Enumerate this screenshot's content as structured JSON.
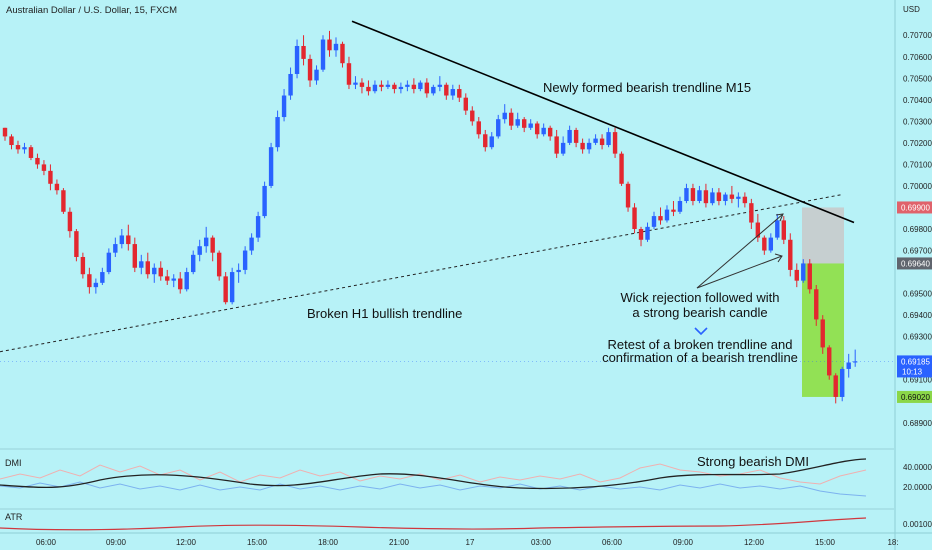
{
  "header": {
    "symbol_title": "Australian Dollar / U.S. Dollar, 15, FXCM"
  },
  "price_axis": {
    "currency_label": "USD",
    "ticks": [
      "0.70700",
      "0.70600",
      "0.70500",
      "0.70400",
      "0.70300",
      "0.70200",
      "0.70100",
      "0.70000",
      "0.69800",
      "0.69700",
      "0.69500",
      "0.69400",
      "0.69300",
      "0.69100",
      "0.68900"
    ],
    "badges": {
      "stop": {
        "value": "0.69900",
        "color": "#e0626b"
      },
      "entry": {
        "value": "0.69640",
        "color": "#60656e"
      },
      "last": {
        "value": "0.69185",
        "sub": "10:13",
        "color": "#2962ff"
      },
      "target": {
        "value": "0.69020",
        "color": "#8bd749"
      }
    }
  },
  "time_axis": {
    "labels": [
      "06:00",
      "09:00",
      "12:00",
      "15:00",
      "18:00",
      "21:00",
      "17",
      "03:00",
      "06:00",
      "09:00",
      "12:00",
      "15:00",
      "18:"
    ]
  },
  "annotations": {
    "m15_trendline": "Newly formed bearish trendline M15",
    "h1_trendline": "Broken H1 bullish trendline",
    "wick_line1": "Wick rejection followed with",
    "wick_line2": "a strong bearish candle",
    "retest_line1": "Retest of a broken trendline and",
    "retest_line2": "confirmation of a bearish trendline",
    "dmi_note": "Strong bearish DMI"
  },
  "indicators": {
    "dmi": {
      "label": "DMI",
      "ticks": [
        "40.0000",
        "20.0000"
      ]
    },
    "atr": {
      "label": "ATR",
      "ticks": [
        "0.00100"
      ]
    }
  },
  "colors": {
    "background": "#b7f2f7",
    "bull": "#2962ff",
    "bear": "#e3272f",
    "stop_zone": "#c9c9c9",
    "target_zone": "#8fdf4c",
    "trendline": "#000000"
  },
  "chart_data": {
    "type": "candlestick",
    "title": "Australian Dollar / U.S. Dollar, 15, FXCM",
    "ylabel": "USD",
    "ylim": [
      0.6882,
      0.7078
    ],
    "candles": [
      [
        0.7027,
        0.7027,
        0.7021,
        0.7023
      ],
      [
        0.7023,
        0.7024,
        0.7017,
        0.7019
      ],
      [
        0.7019,
        0.7021,
        0.7015,
        0.7017
      ],
      [
        0.7017,
        0.702,
        0.7015,
        0.7018
      ],
      [
        0.7018,
        0.7019,
        0.7012,
        0.7013
      ],
      [
        0.7013,
        0.7015,
        0.7008,
        0.701
      ],
      [
        0.701,
        0.7012,
        0.7005,
        0.7007
      ],
      [
        0.7007,
        0.701,
        0.6998,
        0.7001
      ],
      [
        0.7001,
        0.7003,
        0.6996,
        0.6998
      ],
      [
        0.6998,
        0.6999,
        0.6987,
        0.6988
      ],
      [
        0.6988,
        0.699,
        0.6976,
        0.6979
      ],
      [
        0.6979,
        0.698,
        0.6965,
        0.6967
      ],
      [
        0.6967,
        0.6969,
        0.6957,
        0.6959
      ],
      [
        0.6959,
        0.6962,
        0.695,
        0.6953
      ],
      [
        0.6953,
        0.6957,
        0.695,
        0.6955
      ],
      [
        0.6955,
        0.6962,
        0.6954,
        0.696
      ],
      [
        0.696,
        0.6971,
        0.6959,
        0.6969
      ],
      [
        0.6969,
        0.6976,
        0.6967,
        0.6973
      ],
      [
        0.6973,
        0.698,
        0.6971,
        0.6977
      ],
      [
        0.6977,
        0.6982,
        0.697,
        0.6973
      ],
      [
        0.6973,
        0.6976,
        0.696,
        0.6962
      ],
      [
        0.6962,
        0.6968,
        0.6959,
        0.6965
      ],
      [
        0.6965,
        0.6969,
        0.6957,
        0.6959
      ],
      [
        0.6959,
        0.6964,
        0.6955,
        0.6962
      ],
      [
        0.6962,
        0.6965,
        0.6956,
        0.6958
      ],
      [
        0.6958,
        0.6961,
        0.6954,
        0.6956
      ],
      [
        0.6956,
        0.6959,
        0.6953,
        0.6957
      ],
      [
        0.6957,
        0.696,
        0.695,
        0.6952
      ],
      [
        0.6952,
        0.6962,
        0.6951,
        0.696
      ],
      [
        0.696,
        0.697,
        0.6959,
        0.6968
      ],
      [
        0.6968,
        0.6975,
        0.6965,
        0.6972
      ],
      [
        0.6972,
        0.6981,
        0.6969,
        0.6976
      ],
      [
        0.6976,
        0.6977,
        0.6965,
        0.6969
      ],
      [
        0.6969,
        0.697,
        0.6956,
        0.6958
      ],
      [
        0.6958,
        0.696,
        0.6945,
        0.6946
      ],
      [
        0.6946,
        0.6962,
        0.6945,
        0.696
      ],
      [
        0.696,
        0.6964,
        0.6955,
        0.6961
      ],
      [
        0.6961,
        0.6972,
        0.6959,
        0.697
      ],
      [
        0.697,
        0.6978,
        0.6968,
        0.6976
      ],
      [
        0.6976,
        0.6988,
        0.6974,
        0.6986
      ],
      [
        0.6986,
        0.7002,
        0.6985,
        0.7
      ],
      [
        0.7,
        0.702,
        0.6999,
        0.7018
      ],
      [
        0.7018,
        0.7035,
        0.7016,
        0.7032
      ],
      [
        0.7032,
        0.7045,
        0.703,
        0.7042
      ],
      [
        0.7042,
        0.7055,
        0.704,
        0.7052
      ],
      [
        0.7052,
        0.7068,
        0.705,
        0.7065
      ],
      [
        0.7065,
        0.707,
        0.7056,
        0.7059
      ],
      [
        0.7059,
        0.7061,
        0.7046,
        0.7049
      ],
      [
        0.7049,
        0.7056,
        0.7047,
        0.7054
      ],
      [
        0.7054,
        0.707,
        0.7053,
        0.7068
      ],
      [
        0.7068,
        0.7072,
        0.706,
        0.7063
      ],
      [
        0.7063,
        0.7069,
        0.706,
        0.7066
      ],
      [
        0.7066,
        0.7067,
        0.7055,
        0.7057
      ],
      [
        0.7057,
        0.706,
        0.7045,
        0.7047
      ],
      [
        0.7047,
        0.7051,
        0.7045,
        0.7048
      ],
      [
        0.7048,
        0.705,
        0.7043,
        0.7046
      ],
      [
        0.7046,
        0.7049,
        0.7042,
        0.7044
      ],
      [
        0.7044,
        0.7049,
        0.7043,
        0.7047
      ],
      [
        0.7047,
        0.7049,
        0.7044,
        0.7046
      ],
      [
        0.7046,
        0.7049,
        0.7045,
        0.7047
      ],
      [
        0.7047,
        0.7048,
        0.7043,
        0.7045
      ],
      [
        0.7045,
        0.7048,
        0.7043,
        0.7046
      ],
      [
        0.7046,
        0.7049,
        0.7044,
        0.7047
      ],
      [
        0.7047,
        0.705,
        0.7043,
        0.7045
      ],
      [
        0.7045,
        0.7049,
        0.7044,
        0.7048
      ],
      [
        0.7048,
        0.705,
        0.7041,
        0.7043
      ],
      [
        0.7043,
        0.7047,
        0.7042,
        0.7046
      ],
      [
        0.7046,
        0.7051,
        0.7044,
        0.7047
      ],
      [
        0.7047,
        0.7048,
        0.704,
        0.7042
      ],
      [
        0.7042,
        0.7047,
        0.704,
        0.7045
      ],
      [
        0.7045,
        0.7047,
        0.7039,
        0.7041
      ],
      [
        0.7041,
        0.7043,
        0.7033,
        0.7035
      ],
      [
        0.7035,
        0.7037,
        0.7028,
        0.703
      ],
      [
        0.703,
        0.7032,
        0.7022,
        0.7024
      ],
      [
        0.7024,
        0.7026,
        0.7016,
        0.7018
      ],
      [
        0.7018,
        0.7025,
        0.7017,
        0.7023
      ],
      [
        0.7023,
        0.7033,
        0.7022,
        0.7031
      ],
      [
        0.7031,
        0.7038,
        0.7029,
        0.7034
      ],
      [
        0.7034,
        0.7036,
        0.7026,
        0.7028
      ],
      [
        0.7028,
        0.7034,
        0.7027,
        0.7031
      ],
      [
        0.7031,
        0.7032,
        0.7025,
        0.7027
      ],
      [
        0.7027,
        0.7031,
        0.7026,
        0.7029
      ],
      [
        0.7029,
        0.703,
        0.7022,
        0.7024
      ],
      [
        0.7024,
        0.7029,
        0.7023,
        0.7027
      ],
      [
        0.7027,
        0.7028,
        0.7021,
        0.7023
      ],
      [
        0.7023,
        0.7026,
        0.7013,
        0.7015
      ],
      [
        0.7015,
        0.7023,
        0.7014,
        0.702
      ],
      [
        0.702,
        0.7028,
        0.7019,
        0.7026
      ],
      [
        0.7026,
        0.7027,
        0.7018,
        0.702
      ],
      [
        0.702,
        0.7022,
        0.7015,
        0.7017
      ],
      [
        0.7017,
        0.7022,
        0.7015,
        0.702
      ],
      [
        0.702,
        0.7024,
        0.7019,
        0.7022
      ],
      [
        0.7022,
        0.7024,
        0.7017,
        0.7019
      ],
      [
        0.7019,
        0.7027,
        0.7018,
        0.7025
      ],
      [
        0.7025,
        0.7027,
        0.7013,
        0.7015
      ],
      [
        0.7015,
        0.7016,
        0.7,
        0.7001
      ],
      [
        0.7001,
        0.7002,
        0.6988,
        0.699
      ],
      [
        0.699,
        0.6992,
        0.6978,
        0.698
      ],
      [
        0.698,
        0.6981,
        0.6972,
        0.6975
      ],
      [
        0.6975,
        0.6983,
        0.6974,
        0.6981
      ],
      [
        0.6981,
        0.6988,
        0.698,
        0.6986
      ],
      [
        0.6986,
        0.699,
        0.6982,
        0.6984
      ],
      [
        0.6984,
        0.6991,
        0.6983,
        0.6989
      ],
      [
        0.6989,
        0.6993,
        0.6986,
        0.6988
      ],
      [
        0.6988,
        0.6995,
        0.6987,
        0.6993
      ],
      [
        0.6993,
        0.7001,
        0.6992,
        0.6999
      ],
      [
        0.6999,
        0.7001,
        0.6991,
        0.6993
      ],
      [
        0.6993,
        0.7,
        0.6992,
        0.6998
      ],
      [
        0.6998,
        0.7001,
        0.699,
        0.6992
      ],
      [
        0.6992,
        0.6999,
        0.6991,
        0.6997
      ],
      [
        0.6997,
        0.6999,
        0.6991,
        0.6993
      ],
      [
        0.6993,
        0.6997,
        0.6991,
        0.6996
      ],
      [
        0.6996,
        0.7,
        0.6992,
        0.6994
      ],
      [
        0.6994,
        0.6997,
        0.699,
        0.6995
      ],
      [
        0.6995,
        0.6997,
        0.699,
        0.6992
      ],
      [
        0.6992,
        0.6994,
        0.698,
        0.6983
      ],
      [
        0.6983,
        0.6987,
        0.6974,
        0.6976
      ],
      [
        0.6976,
        0.6977,
        0.6968,
        0.697
      ],
      [
        0.697,
        0.6978,
        0.6969,
        0.6976
      ],
      [
        0.6976,
        0.6987,
        0.6975,
        0.6984
      ],
      [
        0.6984,
        0.6986,
        0.6973,
        0.6975
      ],
      [
        0.6975,
        0.6978,
        0.6958,
        0.6961
      ],
      [
        0.6961,
        0.6964,
        0.6953,
        0.6956
      ],
      [
        0.6956,
        0.6966,
        0.6955,
        0.6964
      ],
      [
        0.6964,
        0.6966,
        0.695,
        0.6952
      ],
      [
        0.6952,
        0.6954,
        0.6935,
        0.6938
      ],
      [
        0.6938,
        0.694,
        0.6922,
        0.6925
      ],
      [
        0.6925,
        0.6926,
        0.691,
        0.6912
      ],
      [
        0.6912,
        0.6913,
        0.6899,
        0.6902
      ],
      [
        0.6902,
        0.6916,
        0.69,
        0.6915
      ],
      [
        0.6915,
        0.6922,
        0.6911,
        0.6918
      ],
      [
        0.6918,
        0.6924,
        0.6916,
        0.69185
      ]
    ],
    "lines": {
      "m15_trendline": [
        [
          1,
          0.7075
        ],
        [
          1,
          0.698
        ]
      ],
      "h1_trendline": [
        [
          0.6928
        ],
        [
          0.6995
        ]
      ]
    },
    "zones": {
      "stop": [
        0.6964,
        0.699
      ],
      "target": [
        0.6902,
        0.6964
      ]
    },
    "last_price": 0.69185
  }
}
